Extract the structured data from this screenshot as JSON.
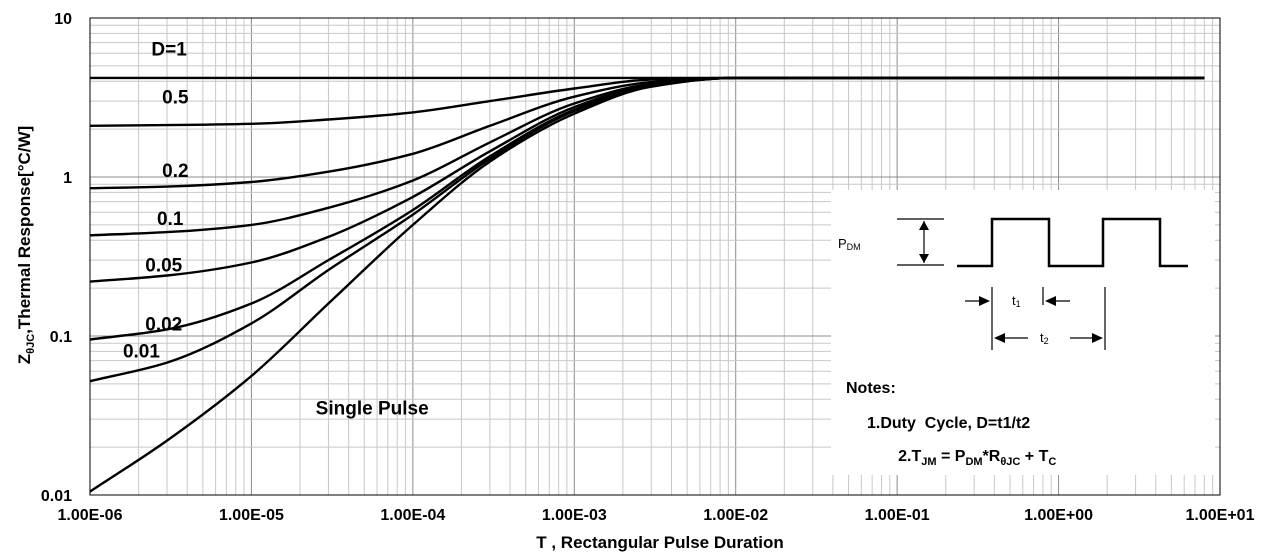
{
  "chart_data": {
    "type": "line",
    "x_scale": "log",
    "y_scale": "log",
    "xlim": [
      1e-06,
      10
    ],
    "ylim": [
      0.01,
      10
    ],
    "grid": true,
    "xlabel": "T , Rectangular Pulse Duration",
    "ylabel": "ZθJC,Thermal Response[°C/W]",
    "x_ticks": [
      1e-06,
      1e-05,
      0.0001,
      0.001,
      0.01,
      0.1,
      1,
      10
    ],
    "x_tick_labels": [
      "1.00E-06",
      "1.00E-05",
      "1.00E-04",
      "1.00E-03",
      "1.00E-02",
      "1.00E-01",
      "1.00E+00",
      "1.00E+01"
    ],
    "y_ticks": [
      0.01,
      0.1,
      1,
      10
    ],
    "y_tick_labels": [
      "0.01",
      "0.1",
      "1",
      "10"
    ],
    "x": [
      1e-06,
      3e-06,
      1e-05,
      3e-05,
      0.0001,
      0.0003,
      0.001,
      0.003,
      0.01,
      0.03,
      0.1,
      1,
      8
    ],
    "series": [
      {
        "name": "D=1",
        "values": [
          4.2,
          4.2,
          4.2,
          4.2,
          4.2,
          4.2,
          4.2,
          4.2,
          4.2,
          4.2,
          4.2,
          4.2,
          4.2
        ]
      },
      {
        "name": "0.5",
        "values": [
          2.1,
          2.12,
          2.16,
          2.3,
          2.55,
          3.0,
          3.6,
          4.1,
          4.2,
          4.2,
          4.2,
          4.2,
          4.2
        ]
      },
      {
        "name": "0.2",
        "values": [
          0.85,
          0.87,
          0.93,
          1.08,
          1.4,
          2.1,
          3.2,
          3.95,
          4.2,
          4.2,
          4.2,
          4.2,
          4.2
        ]
      },
      {
        "name": "0.1",
        "values": [
          0.43,
          0.45,
          0.5,
          0.64,
          0.95,
          1.65,
          2.9,
          3.85,
          4.2,
          4.2,
          4.2,
          4.2,
          4.2
        ]
      },
      {
        "name": "0.05",
        "values": [
          0.22,
          0.24,
          0.29,
          0.42,
          0.75,
          1.45,
          2.75,
          3.8,
          4.2,
          4.2,
          4.2,
          4.2,
          4.2
        ]
      },
      {
        "name": "0.02",
        "values": [
          0.095,
          0.11,
          0.16,
          0.3,
          0.62,
          1.35,
          2.65,
          3.75,
          4.2,
          4.2,
          4.2,
          4.2,
          4.2
        ]
      },
      {
        "name": "0.01",
        "values": [
          0.052,
          0.068,
          0.12,
          0.26,
          0.58,
          1.3,
          2.6,
          3.72,
          4.2,
          4.2,
          4.2,
          4.2,
          4.2
        ]
      },
      {
        "name": "Single Pulse",
        "values": [
          0.0105,
          0.022,
          0.056,
          0.16,
          0.5,
          1.25,
          2.5,
          3.7,
          4.2,
          4.2,
          4.2,
          4.2,
          4.2
        ]
      }
    ],
    "curve_labels": [
      {
        "text": "D=1",
        "x": 2.4e-06,
        "y": 5.8
      },
      {
        "text": "0.5",
        "x": 2.8e-06,
        "y": 2.9
      },
      {
        "text": "0.2",
        "x": 2.8e-06,
        "y": 1.0
      },
      {
        "text": "0.1",
        "x": 2.6e-06,
        "y": 0.5
      },
      {
        "text": "0.05",
        "x": 2.2e-06,
        "y": 0.255
      },
      {
        "text": "0.02",
        "x": 2.2e-06,
        "y": 0.108
      },
      {
        "text": "0.01",
        "x": 1.6e-06,
        "y": 0.073
      },
      {
        "text": "Single Pulse",
        "x": 2.5e-05,
        "y": 0.032
      }
    ],
    "inset": {
      "pdm_label": "P",
      "pdm_sub": "DM",
      "t1_label": "t",
      "t1_sub": "1",
      "t2_label": "t",
      "t2_sub": "2",
      "notes_title": "Notes:",
      "note1": "1.Duty  Cycle, D=t1/t2",
      "note2_a": "2.T",
      "note2_a_sub": "JM",
      "note2_b": " = P",
      "note2_b_sub": "DM",
      "note2_c": "*R",
      "note2_c_sub": "θJC",
      "note2_d": " + T",
      "note2_d_sub": "C"
    }
  }
}
